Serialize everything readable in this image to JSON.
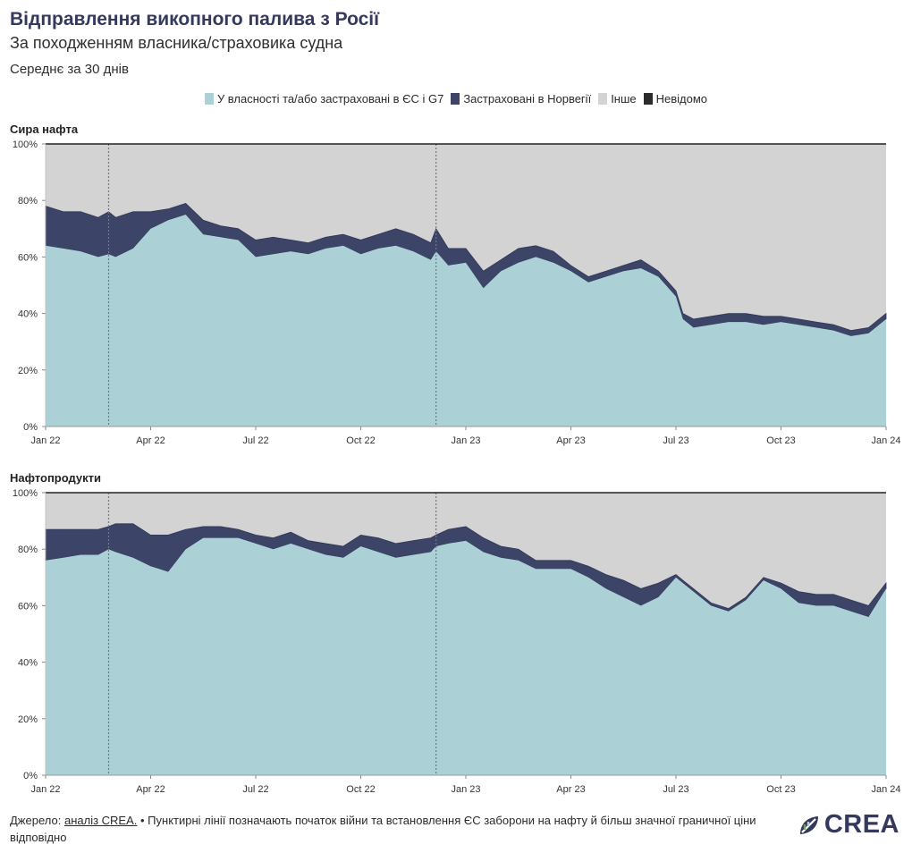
{
  "header": {
    "title": "Відправлення викопного палива з Росії",
    "subtitle": "За походженням власника/страховика судна",
    "note": "Середнє за 30 днів"
  },
  "legend": [
    {
      "label": "У власності та/або застраховані в ЄС і G7",
      "color": "#abd1d7"
    },
    {
      "label": "Застраховані в Норвегії",
      "color": "#3c4468"
    },
    {
      "label": "Інше",
      "color": "#d3d3d3"
    },
    {
      "label": "Невідомо",
      "color": "#2b2b2b"
    }
  ],
  "footer": {
    "source_label": "Джерело:",
    "source_link": "аналіз CREA.",
    "text": "• Пунктирні лінії позначають початок війни та встановлення ЄС заборони на нафту й більш значної граничної ціни відповідно"
  },
  "logo": {
    "text": "CREA"
  },
  "chart_data": [
    {
      "type": "area",
      "stacked": true,
      "title": "Сира нафта",
      "y_ticks": [
        "0%",
        "20%",
        "40%",
        "60%",
        "80%",
        "100%"
      ],
      "ylim": [
        0,
        100
      ],
      "x_ticks": [
        {
          "label": "Jan 22",
          "t": 0
        },
        {
          "label": "Apr 22",
          "t": 3
        },
        {
          "label": "Jul 22",
          "t": 6
        },
        {
          "label": "Oct 22",
          "t": 9
        },
        {
          "label": "Jan 23",
          "t": 12
        },
        {
          "label": "Apr 23",
          "t": 15
        },
        {
          "label": "Jul 23",
          "t": 18
        },
        {
          "label": "Oct 23",
          "t": 21
        },
        {
          "label": "Jan 24",
          "t": 24
        }
      ],
      "xlim": [
        0,
        24
      ],
      "vlines": [
        1.8,
        11.15
      ],
      "x": [
        0,
        0.5,
        1,
        1.5,
        1.8,
        2,
        2.5,
        3,
        3.5,
        4,
        4.5,
        5,
        5.5,
        6,
        6.5,
        7,
        7.5,
        8,
        8.5,
        9,
        9.5,
        10,
        10.5,
        11,
        11.15,
        11.5,
        12,
        12.5,
        13,
        13.5,
        14,
        14.5,
        15,
        15.5,
        16,
        16.5,
        17,
        17.5,
        18,
        18.2,
        18.5,
        19,
        19.5,
        20,
        20.5,
        21,
        21.5,
        22,
        22.5,
        23,
        23.5,
        24
      ],
      "series": [
        {
          "name": "У власності та/або застраховані в ЄС і G7",
          "values": [
            64,
            63,
            62,
            60,
            61,
            60,
            63,
            70,
            73,
            75,
            68,
            67,
            66,
            60,
            61,
            62,
            61,
            63,
            64,
            61,
            63,
            64,
            62,
            59,
            62,
            57,
            58,
            49,
            55,
            58,
            60,
            58,
            55,
            51,
            53,
            55,
            56,
            53,
            46,
            38,
            35,
            36,
            37,
            37,
            36,
            37,
            36,
            35,
            34,
            32,
            33,
            38
          ]
        },
        {
          "name": "Застраховані в Норвегії",
          "values": [
            14,
            13,
            14,
            14,
            15,
            14,
            13,
            6,
            4,
            4,
            5,
            4,
            4,
            6,
            6,
            4,
            4,
            4,
            4,
            5,
            5,
            6,
            6,
            6,
            8,
            6,
            5,
            6,
            4,
            5,
            4,
            4,
            2,
            2,
            2,
            2,
            3,
            2,
            2,
            2,
            3,
            3,
            3,
            3,
            3,
            2,
            2,
            2,
            2,
            2,
            2,
            2
          ]
        },
        {
          "name": "Інше",
          "values": [
            22,
            24,
            24,
            26,
            24,
            26,
            24,
            24,
            23,
            21,
            27,
            29,
            30,
            34,
            33,
            34,
            35,
            33,
            32,
            34,
            32,
            30,
            32,
            35,
            30,
            37,
            37,
            45,
            41,
            37,
            36,
            38,
            43,
            47,
            45,
            43,
            41,
            45,
            52,
            60,
            62,
            61,
            60,
            60,
            61,
            61,
            62,
            63,
            64,
            66,
            65,
            60
          ]
        },
        {
          "name": "Невідомо",
          "values": [
            0,
            0,
            0,
            0,
            0,
            0,
            0,
            0,
            0,
            0,
            0,
            0,
            0,
            0,
            0,
            0,
            0,
            0,
            0,
            0,
            0,
            0,
            0,
            0,
            0,
            0,
            0,
            0,
            0,
            0,
            0,
            0,
            0,
            0,
            0,
            0,
            0,
            0,
            0,
            0,
            0,
            0,
            0,
            0,
            0,
            0,
            0,
            0,
            0,
            0,
            0,
            0
          ]
        }
      ]
    },
    {
      "type": "area",
      "stacked": true,
      "title": "Нафтопродукти",
      "y_ticks": [
        "0%",
        "20%",
        "40%",
        "60%",
        "80%",
        "100%"
      ],
      "ylim": [
        0,
        100
      ],
      "x_ticks": [
        {
          "label": "Jan 22",
          "t": 0
        },
        {
          "label": "Apr 22",
          "t": 3
        },
        {
          "label": "Jul 22",
          "t": 6
        },
        {
          "label": "Oct 22",
          "t": 9
        },
        {
          "label": "Jan 23",
          "t": 12
        },
        {
          "label": "Apr 23",
          "t": 15
        },
        {
          "label": "Jul 23",
          "t": 18
        },
        {
          "label": "Oct 23",
          "t": 21
        },
        {
          "label": "Jan 24",
          "t": 24
        }
      ],
      "xlim": [
        0,
        24
      ],
      "vlines": [
        1.8,
        11.15
      ],
      "x": [
        0,
        0.5,
        1,
        1.5,
        1.8,
        2,
        2.5,
        3,
        3.5,
        4,
        4.5,
        5,
        5.5,
        6,
        6.5,
        7,
        7.5,
        8,
        8.5,
        9,
        9.5,
        10,
        10.5,
        11,
        11.15,
        11.5,
        12,
        12.5,
        13,
        13.5,
        14,
        14.5,
        15,
        15.5,
        16,
        16.5,
        17,
        17.5,
        18,
        18.2,
        18.5,
        19,
        19.5,
        20,
        20.5,
        21,
        21.5,
        22,
        22.5,
        23,
        23.5,
        24
      ],
      "series": [
        {
          "name": "У власності та/або застраховані в ЄС і G7",
          "values": [
            76,
            77,
            78,
            78,
            80,
            79,
            77,
            74,
            72,
            80,
            84,
            84,
            84,
            82,
            80,
            82,
            80,
            78,
            77,
            81,
            79,
            77,
            78,
            79,
            81,
            82,
            83,
            79,
            77,
            76,
            73,
            73,
            73,
            70,
            66,
            63,
            60,
            63,
            70,
            68,
            65,
            60,
            58,
            62,
            69,
            66,
            61,
            60,
            60,
            58,
            56,
            66
          ]
        },
        {
          "name": "Застраховані в Норвегії",
          "values": [
            11,
            10,
            9,
            9,
            8,
            10,
            12,
            11,
            13,
            7,
            4,
            4,
            3,
            3,
            4,
            4,
            3,
            4,
            4,
            4,
            5,
            5,
            5,
            5,
            4,
            5,
            5,
            5,
            4,
            4,
            3,
            3,
            3,
            4,
            5,
            6,
            6,
            5,
            1,
            1,
            1,
            1,
            1,
            1,
            1,
            2,
            4,
            4,
            4,
            4,
            4,
            2
          ]
        },
        {
          "name": "Інше",
          "values": [
            13,
            13,
            13,
            13,
            12,
            11,
            11,
            15,
            15,
            13,
            12,
            12,
            13,
            15,
            16,
            14,
            17,
            18,
            19,
            15,
            16,
            18,
            17,
            16,
            15,
            13,
            12,
            16,
            19,
            20,
            24,
            24,
            24,
            26,
            29,
            31,
            34,
            32,
            29,
            31,
            34,
            39,
            41,
            37,
            30,
            32,
            35,
            36,
            36,
            38,
            40,
            32
          ]
        },
        {
          "name": "Невідомо",
          "values": [
            0,
            0,
            0,
            0,
            0,
            0,
            0,
            0,
            0,
            0,
            0,
            0,
            0,
            0,
            0,
            0,
            0,
            0,
            0,
            0,
            0,
            0,
            0,
            0,
            0,
            0,
            0,
            0,
            0,
            0,
            0,
            0,
            0,
            0,
            0,
            0,
            0,
            0,
            0,
            0,
            0,
            0,
            0,
            0,
            0,
            0,
            0,
            0,
            0,
            0,
            0,
            0
          ]
        }
      ]
    }
  ]
}
